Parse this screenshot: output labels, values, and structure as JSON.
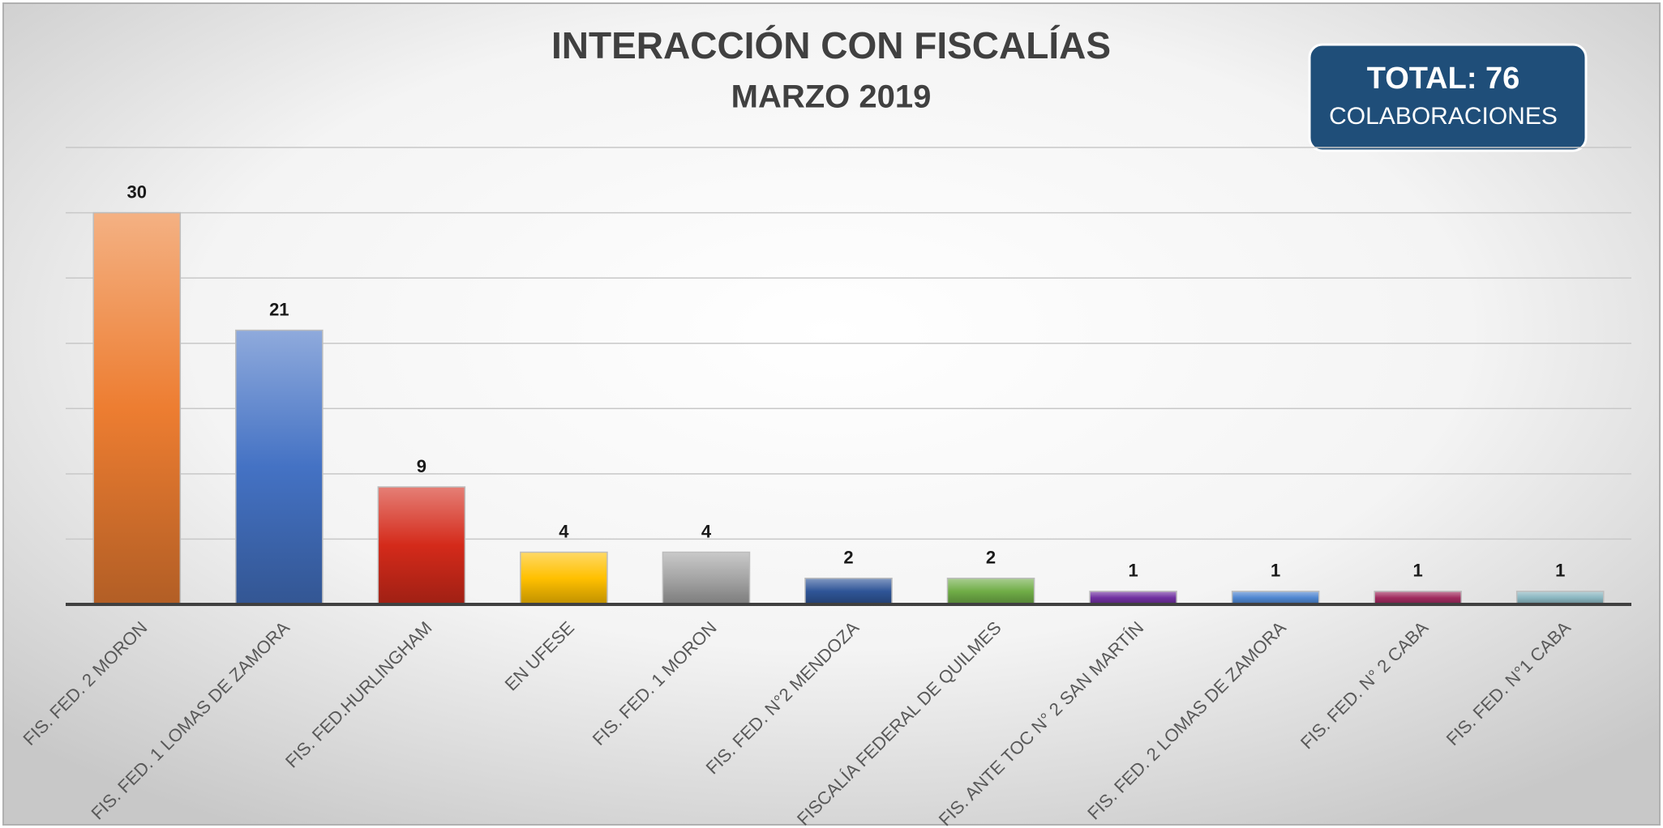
{
  "chart_data": {
    "type": "bar",
    "title": "INTERACCIÓN CON FISCALÍAS",
    "subtitle": "MARZO 2019",
    "annotation": {
      "title": "TOTAL: 76",
      "text": "COLABORACIONES"
    },
    "categories": [
      "FIS. FED. 2 MORON",
      "FIS. FED. 1 LOMAS DE ZAMORA",
      "FIS. FED.HURLINGHAM",
      "EN UFESE",
      "FIS. FED. 1 MORON",
      "FIS. FED. N°2 MENDOZA",
      "FISCALÍA FEDERAL DE QUILMES",
      "FIS. ANTE TOC N° 2 SAN MARTÍN",
      "FIS. FED. 2 LOMAS DE ZAMORA",
      "FIS. FED. N° 2 CABA",
      "FIS. FED. N°1 CABA"
    ],
    "values": [
      30,
      21,
      9,
      4,
      4,
      2,
      2,
      1,
      1,
      1,
      1
    ],
    "colors": [
      "#ed7d31",
      "#4472c4",
      "#d42a1a",
      "#ffc000",
      "#a5a5a5",
      "#2f5597",
      "#70ad47",
      "#7030a0",
      "#4f86d0",
      "#a02b5e",
      "#8ab6c0"
    ],
    "ylim": [
      0,
      35
    ],
    "yticks": [
      0,
      5,
      10,
      15,
      20,
      25,
      30,
      35
    ],
    "grid": true
  }
}
